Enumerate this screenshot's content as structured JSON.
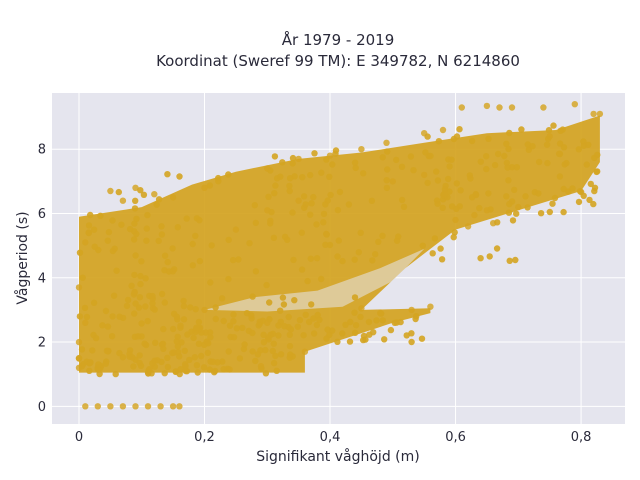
{
  "chart_data": {
    "type": "scatter",
    "title": "År 1979 - 2019",
    "subtitle": "Koordinat (Sweref 99 TM): E 349782, N 6214860",
    "xlabel": "Signifikant våghöjd (m)",
    "ylabel": "Vågperiod (s)",
    "xlim": [
      -0.043,
      0.87
    ],
    "ylim": [
      -0.55,
      9.75
    ],
    "x_ticks": [
      0,
      0.2,
      0.4,
      0.6,
      0.8
    ],
    "x_tick_labels": [
      "0",
      "0,2",
      "0,4",
      "0,6",
      "0,8"
    ],
    "y_ticks": [
      0,
      2,
      4,
      6,
      8
    ],
    "y_tick_labels": [
      "0",
      "2",
      "4",
      "6",
      "8"
    ],
    "grid": true,
    "colors": {
      "marker": "#d4a421",
      "plot_background": "#e5e5ee",
      "grid": "#ffffff",
      "text": "#2a2a3a"
    },
    "series": [
      {
        "values_xy": [
          [
            0.01,
            0.0
          ],
          [
            0.03,
            0.0
          ],
          [
            0.05,
            0.0
          ],
          [
            0.07,
            0.0
          ],
          [
            0.09,
            0.0
          ],
          [
            0.11,
            0.0
          ],
          [
            0.13,
            0.0
          ],
          [
            0.15,
            0.0
          ],
          [
            0.16,
            0.0
          ],
          [
            0.0,
            1.2
          ],
          [
            0.0,
            1.5
          ],
          [
            0.0,
            2.0
          ],
          [
            0.0,
            3.7
          ],
          [
            0.01,
            2.6
          ],
          [
            0.01,
            5.1
          ],
          [
            0.05,
            6.7
          ],
          [
            0.07,
            6.4
          ],
          [
            0.09,
            6.8
          ],
          [
            0.12,
            6.6
          ],
          [
            0.15,
            6.5
          ],
          [
            0.11,
            1.05
          ],
          [
            0.17,
            1.1
          ],
          [
            0.24,
            1.15
          ],
          [
            0.29,
            1.25
          ],
          [
            0.36,
            1.7
          ],
          [
            0.2,
            3.0
          ],
          [
            0.3,
            2.6
          ],
          [
            0.45,
            3.05
          ],
          [
            0.48,
            2.9
          ],
          [
            0.53,
            3.0
          ],
          [
            0.56,
            3.1
          ],
          [
            0.2,
            6.8
          ],
          [
            0.3,
            7.4
          ],
          [
            0.35,
            7.7
          ],
          [
            0.4,
            7.8
          ],
          [
            0.45,
            8.0
          ],
          [
            0.49,
            8.2
          ],
          [
            0.55,
            8.5
          ],
          [
            0.58,
            8.6
          ],
          [
            0.61,
            9.3
          ],
          [
            0.65,
            9.35
          ],
          [
            0.67,
            9.3
          ],
          [
            0.69,
            9.3
          ],
          [
            0.74,
            9.3
          ],
          [
            0.75,
            8.4
          ],
          [
            0.79,
            9.4
          ],
          [
            0.82,
            9.1
          ],
          [
            0.83,
            9.1
          ],
          [
            0.6,
            5.8
          ],
          [
            0.63,
            5.95
          ],
          [
            0.65,
            6.1
          ],
          [
            0.7,
            6.2
          ],
          [
            0.62,
            5.6
          ],
          [
            0.66,
            5.7
          ],
          [
            0.25,
            5.5
          ],
          [
            0.3,
            6.1
          ],
          [
            0.35,
            6.4
          ],
          [
            0.5,
            7.0
          ],
          [
            0.55,
            7.2
          ]
        ],
        "density_bands": [
          {
            "x": [
              0.0,
              0.2
            ],
            "y": [
              1.0,
              6.0
            ]
          },
          {
            "x": [
              0.0,
              0.35
            ],
            "y": [
              1.0,
              2.0
            ]
          },
          {
            "x": [
              0.15,
              0.55
            ],
            "y": [
              2.0,
              2.9
            ]
          },
          {
            "x": [
              0.05,
              0.45
            ],
            "y": [
              2.5,
              7.5
            ]
          },
          {
            "x": [
              0.3,
              0.7
            ],
            "y": [
              4.5,
              8.0
            ]
          },
          {
            "x": [
              0.55,
              0.83
            ],
            "y": [
              6.0,
              8.8
            ]
          }
        ]
      }
    ]
  }
}
